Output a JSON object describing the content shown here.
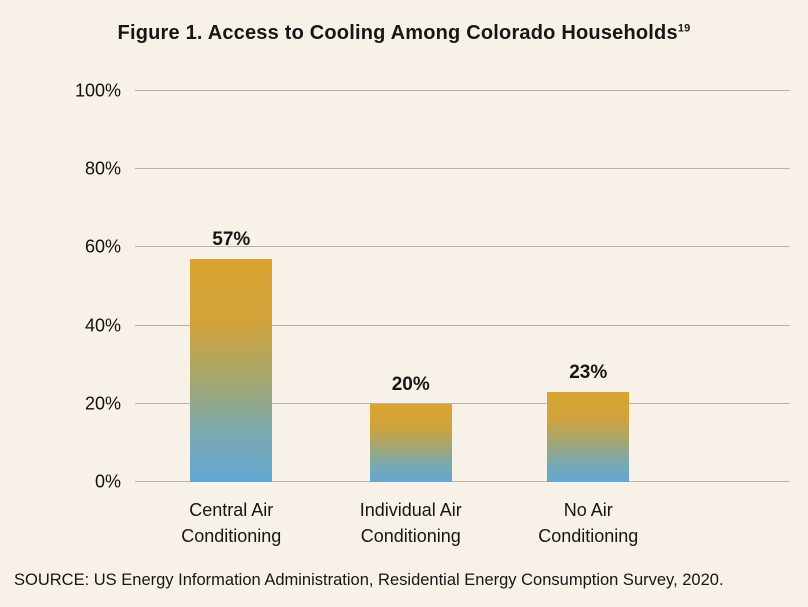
{
  "chart_data": {
    "type": "bar",
    "title": "Figure 1. Access to Cooling Among Colorado Households",
    "title_superscript": "19",
    "categories": [
      "Central Air\nConditioning",
      "Individual Air\nConditioning",
      "No Air\nConditioning"
    ],
    "values": [
      57,
      20,
      23
    ],
    "value_labels": [
      "57%",
      "20%",
      "23%"
    ],
    "ylim": [
      0,
      100
    ],
    "yticks": [
      0,
      20,
      40,
      60,
      80,
      100
    ],
    "ytick_suffix": "%",
    "xlabel": "",
    "ylabel": "",
    "grid": true,
    "legend": "none",
    "background_color": "#f7f1e7",
    "gridline_color": "#b7b2a5",
    "bar_gradient_top_color": "#d9a531",
    "bar_gradient_bottom_color": "#62a7d2"
  },
  "source": "SOURCE: US Energy Information Administration, Residential Energy Consumption Survey, 2020."
}
